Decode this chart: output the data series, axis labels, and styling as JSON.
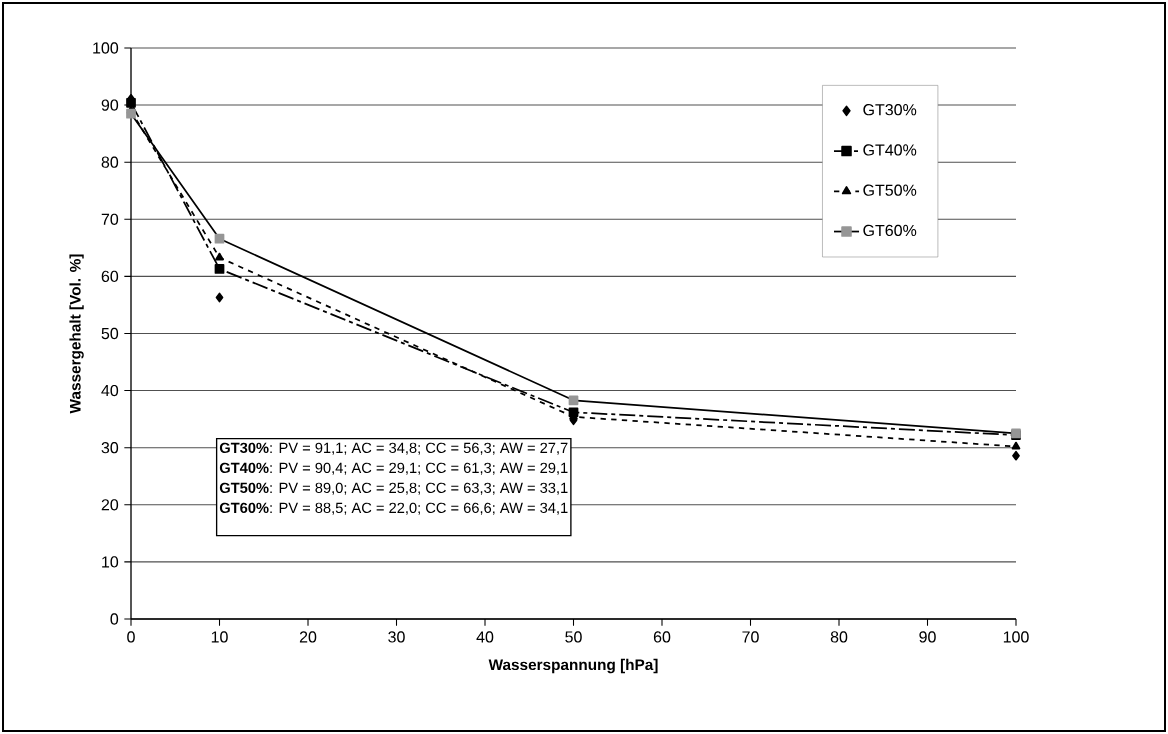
{
  "chart_data": {
    "type": "line",
    "xlabel": "Wasserspannung [hPa]",
    "ylabel": "Wassergehalt [Vol. %]",
    "x": [
      0,
      10,
      50,
      100
    ],
    "series": [
      {
        "name": "GT30%",
        "type": "scatter",
        "color": "#000000",
        "values": [
          91.1,
          56.3,
          34.8,
          28.6
        ],
        "marker": "diamond"
      },
      {
        "name": "GT40%",
        "color": "#000000",
        "values": [
          90.4,
          61.3,
          36.2,
          32.2
        ],
        "marker": "square",
        "line_style": "dashed"
      },
      {
        "name": "GT50%",
        "color": "#000000",
        "values": [
          89.0,
          63.3,
          35.4,
          30.2
        ],
        "marker": "triangle",
        "line_style": "dotted"
      },
      {
        "name": "GT60%",
        "color": "#969696",
        "values": [
          88.5,
          66.6,
          38.3,
          32.5
        ],
        "marker": "square",
        "line_style": "solid"
      }
    ],
    "xlim": [
      0,
      100
    ],
    "xticks": [
      0,
      10,
      20,
      30,
      40,
      50,
      60,
      70,
      80,
      90,
      100
    ],
    "ylim": [
      0,
      100
    ],
    "yticks": [
      0,
      10,
      20,
      30,
      40,
      50,
      60,
      70,
      80,
      90,
      100
    ],
    "grid": "y",
    "legend": "top right",
    "annotations": [
      "**GT30%**: PV = 91,1; AC = 34,8; CC = 56,3; AW = 27,7",
      "**GT40%**: PV = 90,4; AC = 29,1; CC = 61,3; AW = 29,1",
      "**GT50%**: PV = 89,0; AC = 25,8; CC = 63,3; AW = 33,1",
      "**GT60%**: PV = 88,5; AC = 22,0; CC = 66,6; AW = 34,1"
    ]
  }
}
